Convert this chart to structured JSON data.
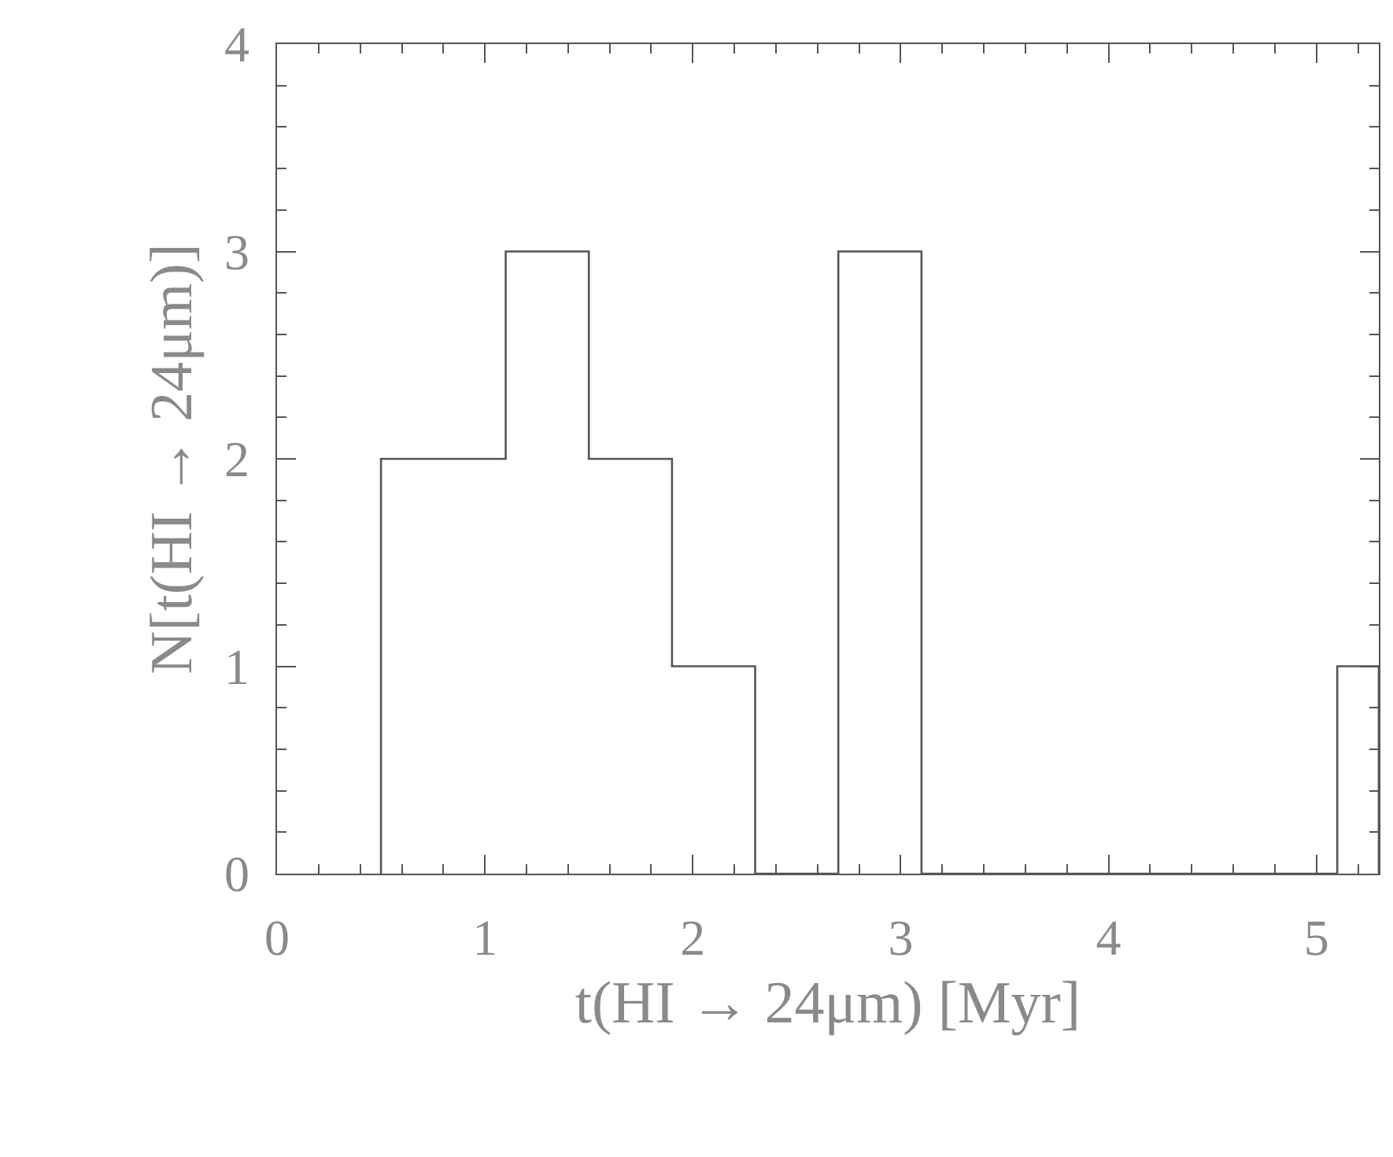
{
  "chart_data": {
    "type": "histogram",
    "xlabel": "t(HI → 24μm) [Myr]",
    "ylabel": "N[t(HI → 24μm)]",
    "bins": [
      0.5,
      1.1,
      1.5,
      1.9,
      2.3,
      2.7,
      3.1,
      5.1,
      5.3
    ],
    "values": [
      2,
      3,
      2,
      1,
      0,
      3,
      0,
      1
    ],
    "color": "#555555",
    "xlim": [
      0,
      5.3
    ],
    "xticks": [
      0,
      1,
      2,
      3,
      4,
      5
    ],
    "ylim": [
      0,
      4
    ],
    "yticks": [
      0,
      1,
      2,
      3,
      4
    ]
  }
}
